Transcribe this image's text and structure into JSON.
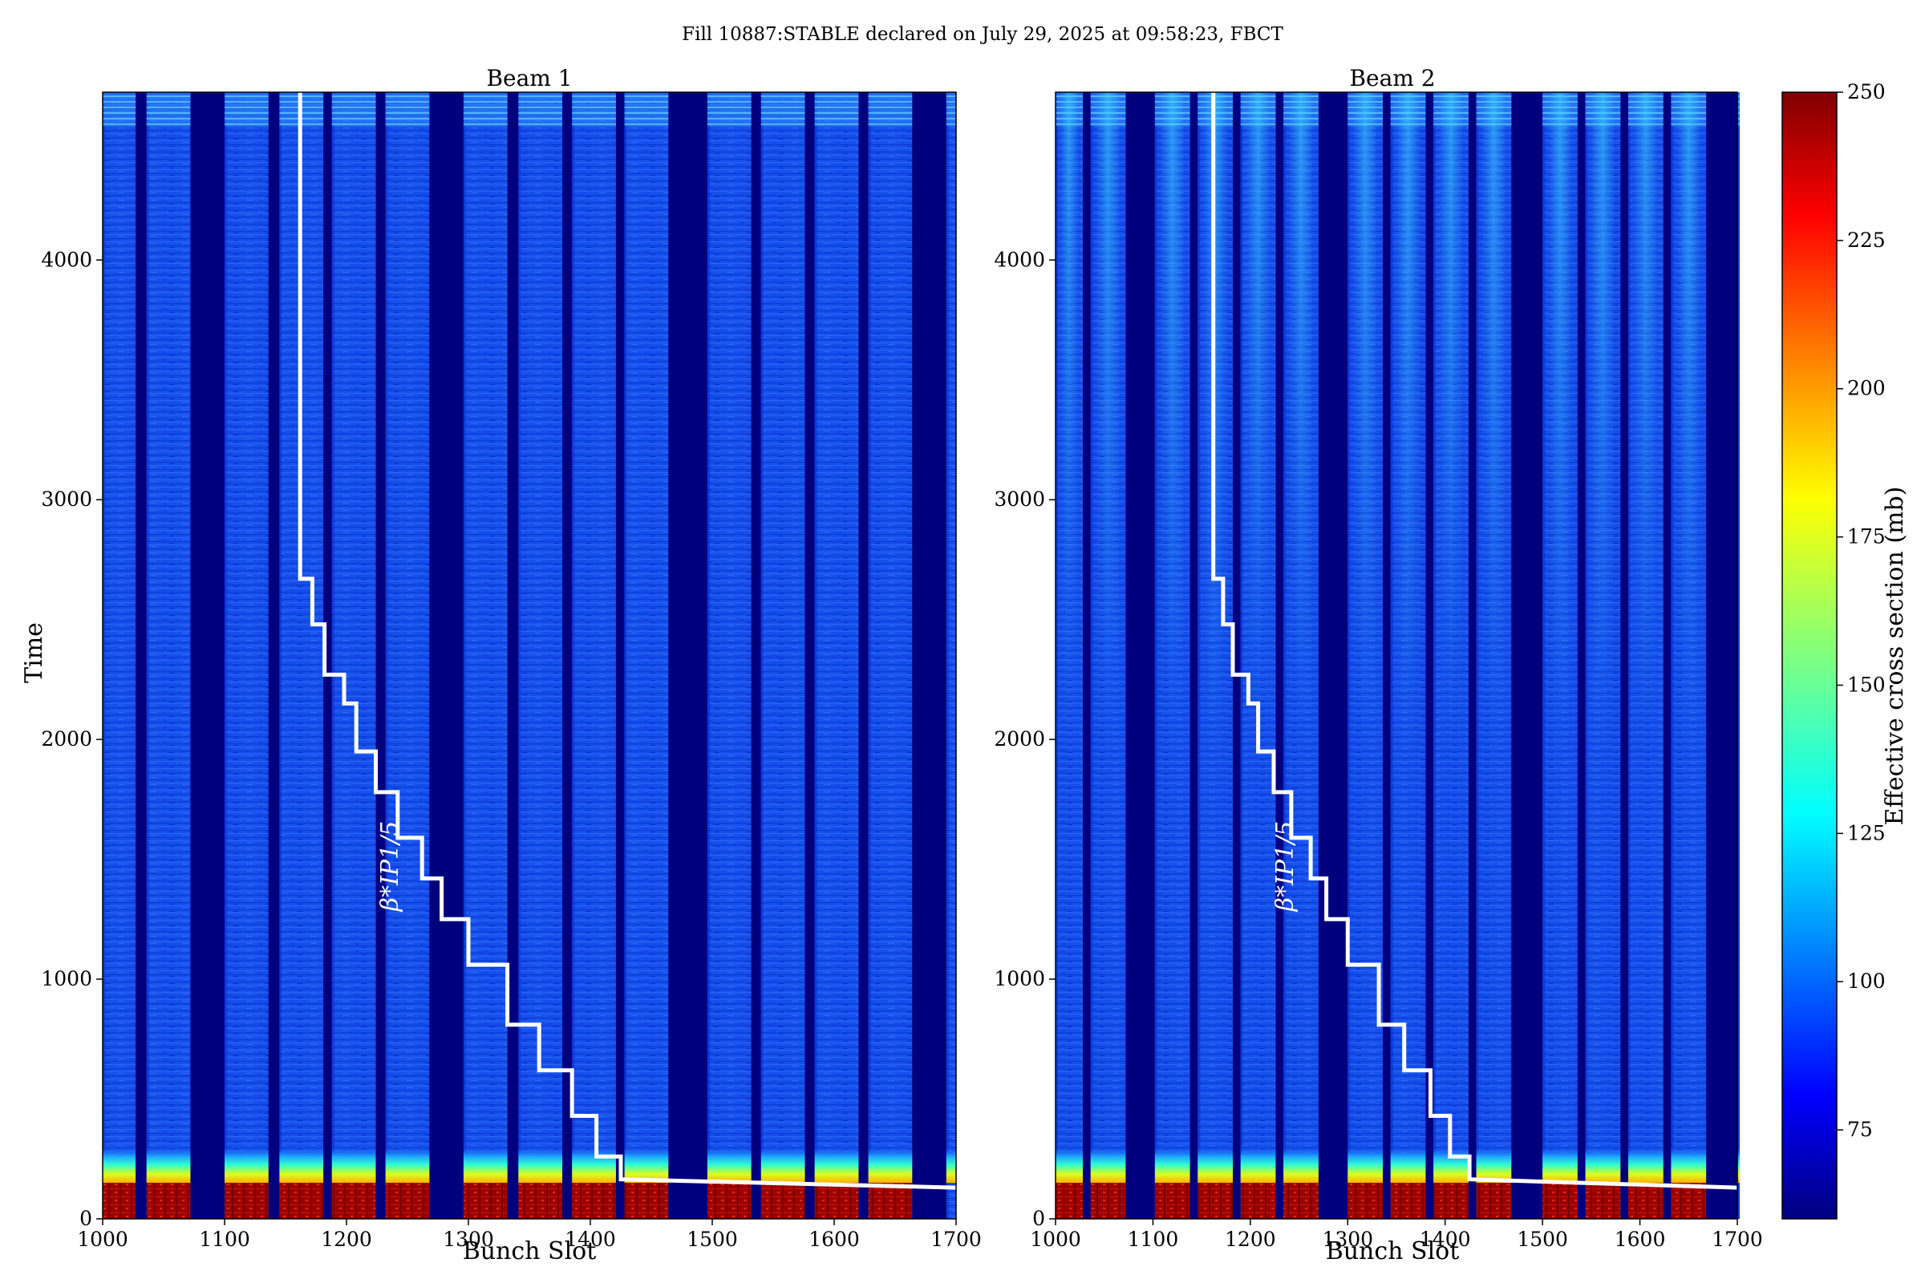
{
  "figure": {
    "suptitle": "Fill 10887:STABLE declared on July 29, 2025 at 09:58:23, FBCT"
  },
  "colorbar": {
    "label": "Effective cross section (mb)",
    "ticks": [
      75,
      100,
      125,
      150,
      175,
      200,
      225,
      250
    ],
    "range": [
      60,
      250
    ],
    "colormap": "jet"
  },
  "colors": {
    "dark_gap": "#00007f",
    "stair_line": "#ffffff"
  },
  "chart_data": [
    {
      "type": "heatmap",
      "title": "Beam 1",
      "xlabel": "Bunch Slot",
      "ylabel": "Time",
      "xlim": [
        1000,
        1700
      ],
      "ylim": [
        0,
        4700
      ],
      "xticks": [
        1000,
        1100,
        1200,
        1300,
        1400,
        1500,
        1600,
        1700
      ],
      "yticks": [
        0,
        1000,
        2000,
        3000,
        4000
      ],
      "annotation": "β*IP1/5",
      "filled_trains": [
        [
          1000,
          1027
        ],
        [
          1036,
          1072
        ],
        [
          1100,
          1136
        ],
        [
          1145,
          1181
        ],
        [
          1188,
          1224
        ],
        [
          1232,
          1268
        ],
        [
          1296,
          1332
        ],
        [
          1341,
          1377
        ],
        [
          1385,
          1421
        ],
        [
          1428,
          1464
        ],
        [
          1496,
          1532
        ],
        [
          1540,
          1576
        ],
        [
          1584,
          1620
        ],
        [
          1628,
          1664
        ],
        [
          1692,
          1700
        ]
      ],
      "hot_trains": [
        [
          1000,
          1027
        ],
        [
          1036,
          1072
        ],
        [
          1100,
          1136
        ],
        [
          1145,
          1181
        ],
        [
          1188,
          1224
        ],
        [
          1232,
          1268
        ],
        [
          1296,
          1332
        ],
        [
          1341,
          1377
        ],
        [
          1385,
          1421
        ],
        [
          1428,
          1464
        ],
        [
          1496,
          1532
        ],
        [
          1540,
          1576
        ],
        [
          1584,
          1620
        ],
        [
          1628,
          1664
        ]
      ],
      "beta_star_steps": [
        [
          1162,
          4700
        ],
        [
          1162,
          2670
        ],
        [
          1172,
          2670
        ],
        [
          1172,
          2480
        ],
        [
          1182,
          2480
        ],
        [
          1182,
          2270
        ],
        [
          1198,
          2270
        ],
        [
          1198,
          2150
        ],
        [
          1208,
          2150
        ],
        [
          1208,
          1950
        ],
        [
          1224,
          1950
        ],
        [
          1224,
          1780
        ],
        [
          1242,
          1780
        ],
        [
          1242,
          1590
        ],
        [
          1262,
          1590
        ],
        [
          1262,
          1420
        ],
        [
          1278,
          1420
        ],
        [
          1278,
          1250
        ],
        [
          1300,
          1250
        ],
        [
          1300,
          1060
        ],
        [
          1332,
          1060
        ],
        [
          1332,
          810
        ],
        [
          1358,
          810
        ],
        [
          1358,
          620
        ],
        [
          1385,
          620
        ],
        [
          1385,
          430
        ],
        [
          1405,
          430
        ],
        [
          1405,
          260
        ],
        [
          1425,
          260
        ],
        [
          1425,
          165
        ],
        [
          1700,
          130
        ]
      ]
    },
    {
      "type": "heatmap",
      "title": "Beam 2",
      "xlabel": "Bunch Slot",
      "ylabel": "",
      "xlim": [
        1000,
        1700
      ],
      "ylim": [
        0,
        4700
      ],
      "xticks": [
        1000,
        1100,
        1200,
        1300,
        1400,
        1500,
        1600,
        1700
      ],
      "yticks": [
        0,
        1000,
        2000,
        3000,
        4000
      ],
      "annotation": "β*IP1/5",
      "filled_trains": [
        [
          1000,
          1028
        ],
        [
          1036,
          1072
        ],
        [
          1102,
          1138
        ],
        [
          1146,
          1182
        ],
        [
          1190,
          1226
        ],
        [
          1234,
          1270
        ],
        [
          1300,
          1336
        ],
        [
          1344,
          1380
        ],
        [
          1388,
          1424
        ],
        [
          1432,
          1468
        ],
        [
          1500,
          1536
        ],
        [
          1544,
          1580
        ],
        [
          1588,
          1624
        ],
        [
          1632,
          1668
        ],
        [
          1700,
          1700
        ]
      ],
      "hot_trains": [
        [
          1000,
          1028
        ],
        [
          1036,
          1072
        ],
        [
          1102,
          1138
        ],
        [
          1146,
          1182
        ],
        [
          1190,
          1226
        ],
        [
          1234,
          1270
        ],
        [
          1300,
          1336
        ],
        [
          1344,
          1380
        ],
        [
          1388,
          1424
        ],
        [
          1432,
          1468
        ],
        [
          1500,
          1536
        ],
        [
          1544,
          1580
        ],
        [
          1588,
          1624
        ],
        [
          1632,
          1668
        ]
      ],
      "beta_star_steps": [
        [
          1162,
          4700
        ],
        [
          1162,
          2670
        ],
        [
          1172,
          2670
        ],
        [
          1172,
          2480
        ],
        [
          1182,
          2480
        ],
        [
          1182,
          2270
        ],
        [
          1198,
          2270
        ],
        [
          1198,
          2150
        ],
        [
          1208,
          2150
        ],
        [
          1208,
          1950
        ],
        [
          1224,
          1950
        ],
        [
          1224,
          1780
        ],
        [
          1242,
          1780
        ],
        [
          1242,
          1590
        ],
        [
          1262,
          1590
        ],
        [
          1262,
          1420
        ],
        [
          1278,
          1420
        ],
        [
          1278,
          1250
        ],
        [
          1300,
          1250
        ],
        [
          1300,
          1060
        ],
        [
          1332,
          1060
        ],
        [
          1332,
          810
        ],
        [
          1358,
          810
        ],
        [
          1358,
          620
        ],
        [
          1385,
          620
        ],
        [
          1385,
          430
        ],
        [
          1405,
          430
        ],
        [
          1405,
          260
        ],
        [
          1425,
          260
        ],
        [
          1425,
          165
        ],
        [
          1700,
          130
        ]
      ]
    }
  ]
}
